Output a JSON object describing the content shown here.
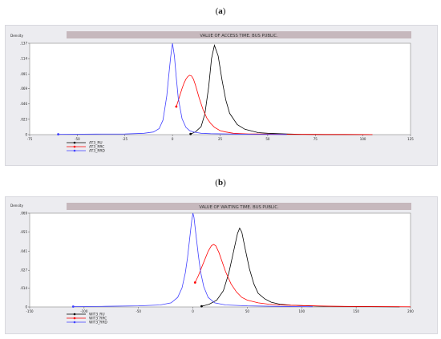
{
  "labels": {
    "a": "a",
    "b": "b"
  },
  "chart_data": [
    {
      "type": "line",
      "title": "VALUE OF ACCESS TIME. BUS PUBLIC.",
      "ylabel": "Density",
      "xlim": [
        -75,
        125
      ],
      "ylim": [
        0,
        0.137
      ],
      "x_ticks": [
        "-75",
        "-50",
        "-25",
        "0",
        "25",
        "50",
        "75",
        "100",
        "125"
      ],
      "y_ticks": [
        "0",
        ".023",
        ".046",
        ".069",
        ".091",
        ".114",
        ".137"
      ],
      "y_tick_values": [
        0,
        0.023,
        0.046,
        0.069,
        0.091,
        0.114,
        0.137
      ],
      "legend": [
        "AT3_RU",
        "AT3_RRC",
        "AT3_RRD"
      ],
      "colors": [
        "#000000",
        "#ff0000",
        "#4040ff"
      ],
      "series": [
        {
          "name": "AT3_RU",
          "x": [
            9.5,
            12,
            15,
            17,
            19,
            20.5,
            22,
            24,
            26,
            28,
            30,
            34,
            38,
            45,
            50,
            60,
            68,
            80,
            90,
            105
          ],
          "y": [
            0.001,
            0.004,
            0.012,
            0.031,
            0.072,
            0.114,
            0.134,
            0.118,
            0.082,
            0.052,
            0.032,
            0.015,
            0.008,
            0.003,
            0.002,
            0.001,
            0.0005,
            0.0003,
            0.0002,
            0.0001
          ]
        },
        {
          "name": "AT3_RRC",
          "x": [
            2,
            3,
            4,
            5,
            6,
            7,
            8,
            9,
            10,
            11,
            12,
            13,
            14,
            16,
            18,
            20,
            22,
            25,
            28,
            32,
            36,
            40,
            45,
            50,
            60,
            70,
            80,
            90,
            105
          ],
          "y": [
            0.042,
            0.051,
            0.06,
            0.069,
            0.077,
            0.083,
            0.087,
            0.089,
            0.088,
            0.083,
            0.075,
            0.065,
            0.055,
            0.038,
            0.025,
            0.017,
            0.011,
            0.006,
            0.004,
            0.002,
            0.0015,
            0.001,
            0.001,
            0.0008,
            0.0005,
            0.0004,
            0.0003,
            0.0002,
            0.0001
          ]
        },
        {
          "name": "AT3_RRD",
          "x": [
            -60,
            -40,
            -25,
            -15,
            -10,
            -7,
            -5,
            -3,
            -2,
            -1,
            0,
            1,
            2,
            3,
            5,
            7,
            9,
            11,
            13,
            15,
            20,
            30,
            45,
            60
          ],
          "y": [
            0.0005,
            0.0008,
            0.001,
            0.002,
            0.004,
            0.009,
            0.022,
            0.058,
            0.088,
            0.116,
            0.137,
            0.118,
            0.085,
            0.055,
            0.024,
            0.011,
            0.006,
            0.004,
            0.003,
            0.002,
            0.0015,
            0.001,
            0.0005,
            0.0002
          ]
        }
      ]
    },
    {
      "type": "line",
      "title": "VALUE OF WAITING TIME. BUS PUBLIC.",
      "ylabel": "Density",
      "xlim": [
        -150,
        200
      ],
      "ylim": [
        0,
        0.069
      ],
      "x_ticks": [
        "-150",
        "-100",
        "-50",
        "0",
        "50",
        "100",
        "150",
        "200"
      ],
      "y_ticks": [
        "0",
        ".014",
        ".027",
        ".041",
        ".055",
        ".069"
      ],
      "y_tick_values": [
        0,
        0.014,
        0.027,
        0.041,
        0.055,
        0.069
      ],
      "legend": [
        "WIT3_RU",
        "WIT3_RRC",
        "WIT3_RRD"
      ],
      "colors": [
        "#000000",
        "#ff0000",
        "#4040ff"
      ],
      "series": [
        {
          "name": "WIT3_RU",
          "x": [
            8,
            15,
            22,
            28,
            33,
            38,
            41,
            43,
            45,
            48,
            52,
            56,
            60,
            66,
            72,
            80,
            90,
            100,
            120,
            150,
            190
          ],
          "y": [
            0.0005,
            0.002,
            0.005,
            0.012,
            0.025,
            0.043,
            0.054,
            0.058,
            0.055,
            0.043,
            0.028,
            0.017,
            0.01,
            0.006,
            0.0035,
            0.002,
            0.0013,
            0.001,
            0.0005,
            0.0003,
            0.0001
          ]
        },
        {
          "name": "WIT3_RRC",
          "x": [
            2,
            5,
            8,
            11,
            14,
            17,
            19,
            21,
            24,
            27,
            30,
            35,
            40,
            45,
            50,
            60,
            70,
            80,
            100,
            130,
            160,
            200
          ],
          "y": [
            0.018,
            0.023,
            0.029,
            0.035,
            0.041,
            0.045,
            0.046,
            0.045,
            0.04,
            0.033,
            0.026,
            0.017,
            0.011,
            0.007,
            0.005,
            0.003,
            0.002,
            0.0015,
            0.001,
            0.0005,
            0.0003,
            0.0001
          ]
        },
        {
          "name": "WIT3_RRD",
          "x": [
            -110,
            -80,
            -50,
            -30,
            -20,
            -14,
            -10,
            -7,
            -5,
            -3,
            -1,
            0,
            1,
            3,
            5,
            7,
            10,
            14,
            20,
            30,
            50,
            80,
            110
          ],
          "y": [
            0.0003,
            0.0005,
            0.0008,
            0.0015,
            0.003,
            0.007,
            0.014,
            0.025,
            0.036,
            0.05,
            0.064,
            0.069,
            0.066,
            0.052,
            0.038,
            0.026,
            0.015,
            0.007,
            0.003,
            0.0015,
            0.0008,
            0.0004,
            0.0002
          ]
        }
      ]
    }
  ]
}
